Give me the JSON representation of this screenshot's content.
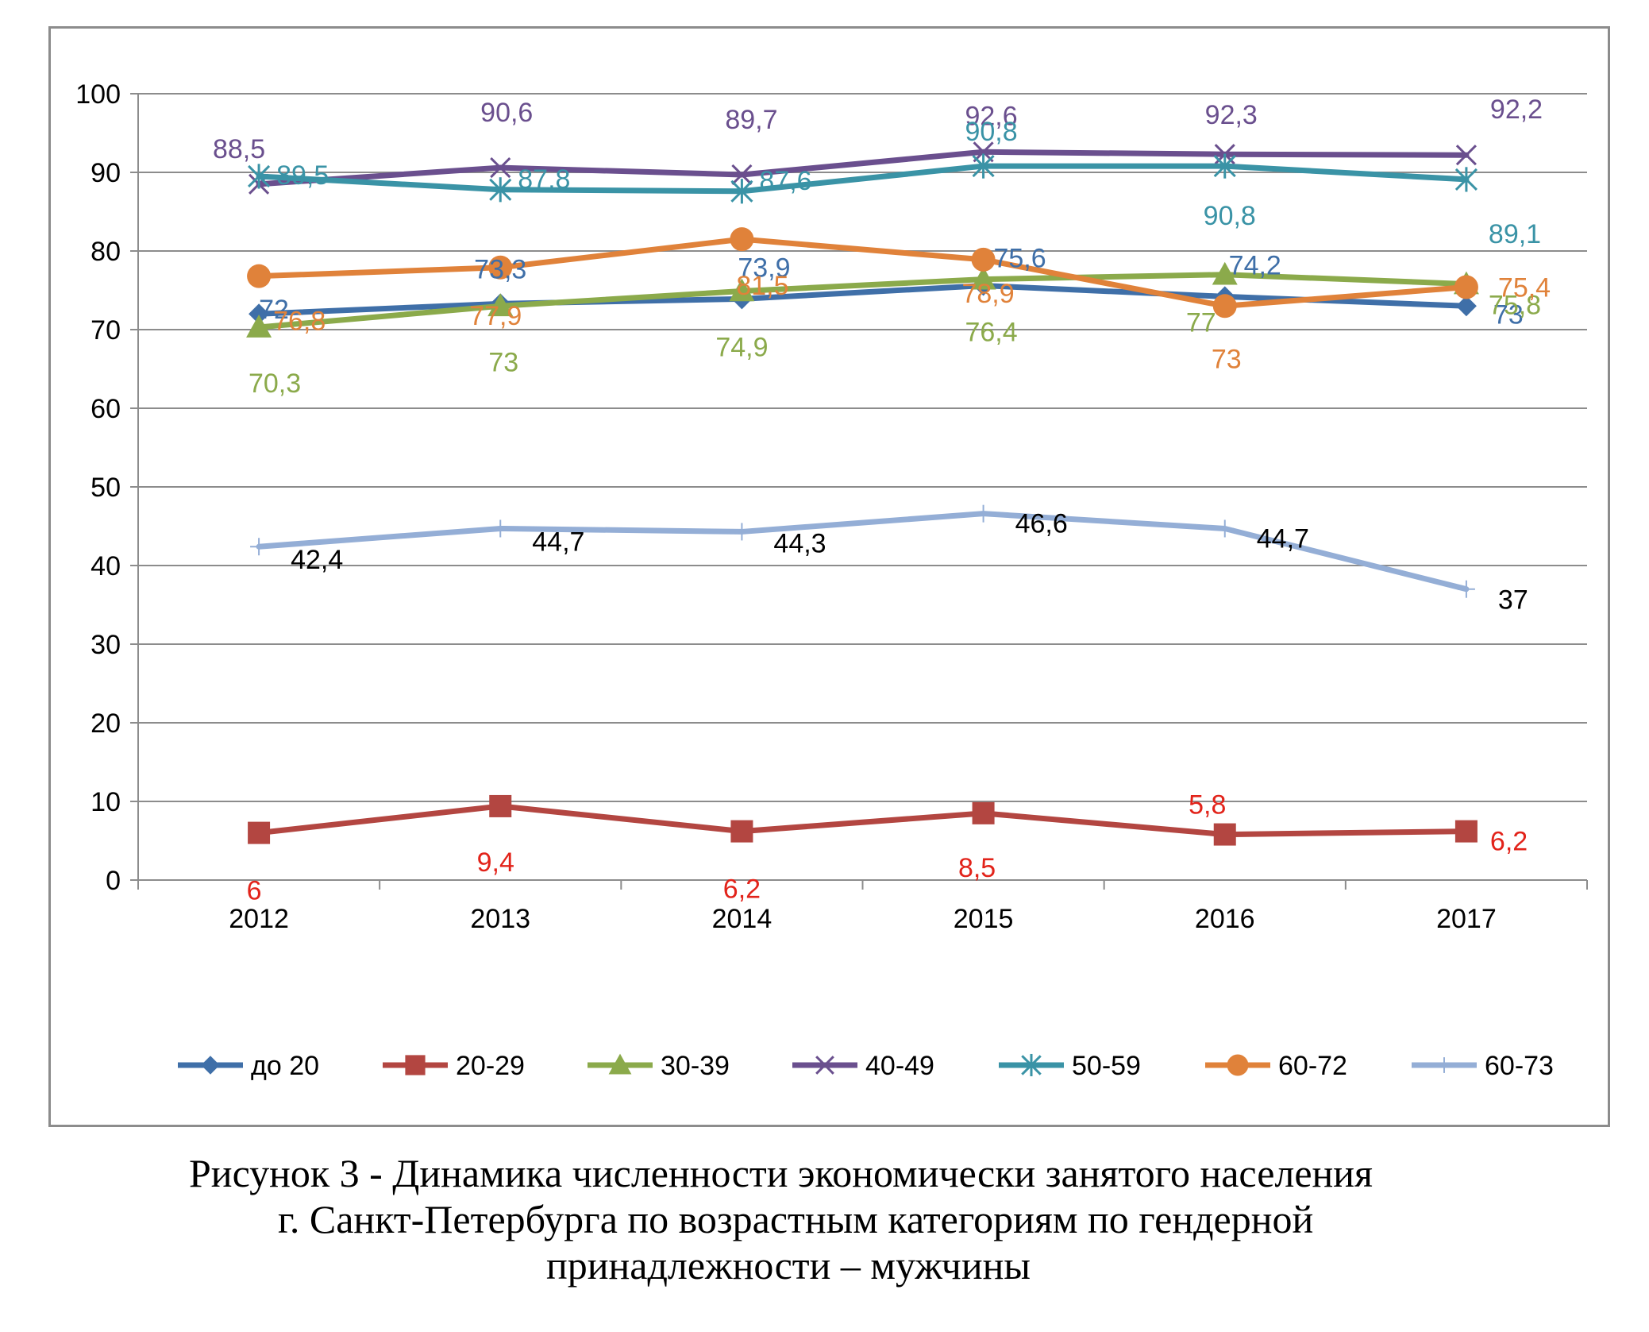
{
  "chart_data": {
    "type": "line",
    "title": "",
    "xlabel": "",
    "ylabel": "",
    "categories": [
      "2012",
      "2013",
      "2014",
      "2015",
      "2016",
      "2017"
    ],
    "ylim": [
      0,
      100
    ],
    "yticks": [
      0,
      10,
      20,
      30,
      40,
      50,
      60,
      70,
      80,
      90,
      100
    ],
    "grid": true,
    "legend_position": "bottom",
    "series": [
      {
        "name": "до 20",
        "color": "#3f6fa8",
        "marker": "diamond",
        "values": [
          72,
          73.3,
          73.9,
          75.6,
          74.2,
          73
        ],
        "labels": [
          "72",
          "73,3",
          "73,9",
          "75,6",
          "74,2",
          "73"
        ]
      },
      {
        "name": "20-29",
        "color": "#b34641",
        "label_color": "#e2231a",
        "marker": "square",
        "values": [
          6,
          9.4,
          6.2,
          8.5,
          5.8,
          6.2
        ],
        "labels": [
          "6",
          "9,4",
          "6,2",
          "8,5",
          "5,8",
          "6,2"
        ]
      },
      {
        "name": "30-39",
        "color": "#8baa4b",
        "marker": "triangle",
        "values": [
          70.3,
          73,
          74.9,
          76.4,
          77,
          75.8
        ],
        "labels": [
          "70,3",
          "73",
          "74,9",
          "76,4",
          "77",
          "75,8"
        ]
      },
      {
        "name": "40-49",
        "color": "#6a4f8e",
        "marker": "x",
        "values": [
          88.5,
          90.6,
          89.7,
          92.6,
          92.3,
          92.2
        ],
        "labels": [
          "88,5",
          "90,6",
          "89,7",
          "92,6",
          "92,3",
          "92,2"
        ]
      },
      {
        "name": "50-59",
        "color": "#3a93a6",
        "marker": "star",
        "values": [
          89.5,
          87.8,
          87.6,
          90.8,
          90.8,
          89.1
        ],
        "labels": [
          "89,5",
          "87,8",
          "87,6",
          "90,8",
          "90,8",
          "89,1"
        ]
      },
      {
        "name": "60-72",
        "color": "#e0823a",
        "marker": "circle",
        "values": [
          76.8,
          77.9,
          81.5,
          78.9,
          73,
          75.4
        ],
        "labels": [
          "76,8",
          "77,9",
          "81,5",
          "78,9",
          "73",
          "75,4"
        ]
      },
      {
        "name": "60-73",
        "color": "#94aed6",
        "label_color": "#000000",
        "marker": "plus",
        "values": [
          42.4,
          44.7,
          44.3,
          46.6,
          44.7,
          37
        ],
        "labels": [
          "42,4",
          "44,7",
          "44,3",
          "46,6",
          "44,7",
          "37"
        ]
      }
    ]
  },
  "caption": {
    "line1": "Рисунок 3 - Динамика численности экономически занятого населения",
    "line2": "г. Санкт-Петербурга по возрастным категориям по гендерной",
    "line3": "принадлежности – мужчины"
  }
}
